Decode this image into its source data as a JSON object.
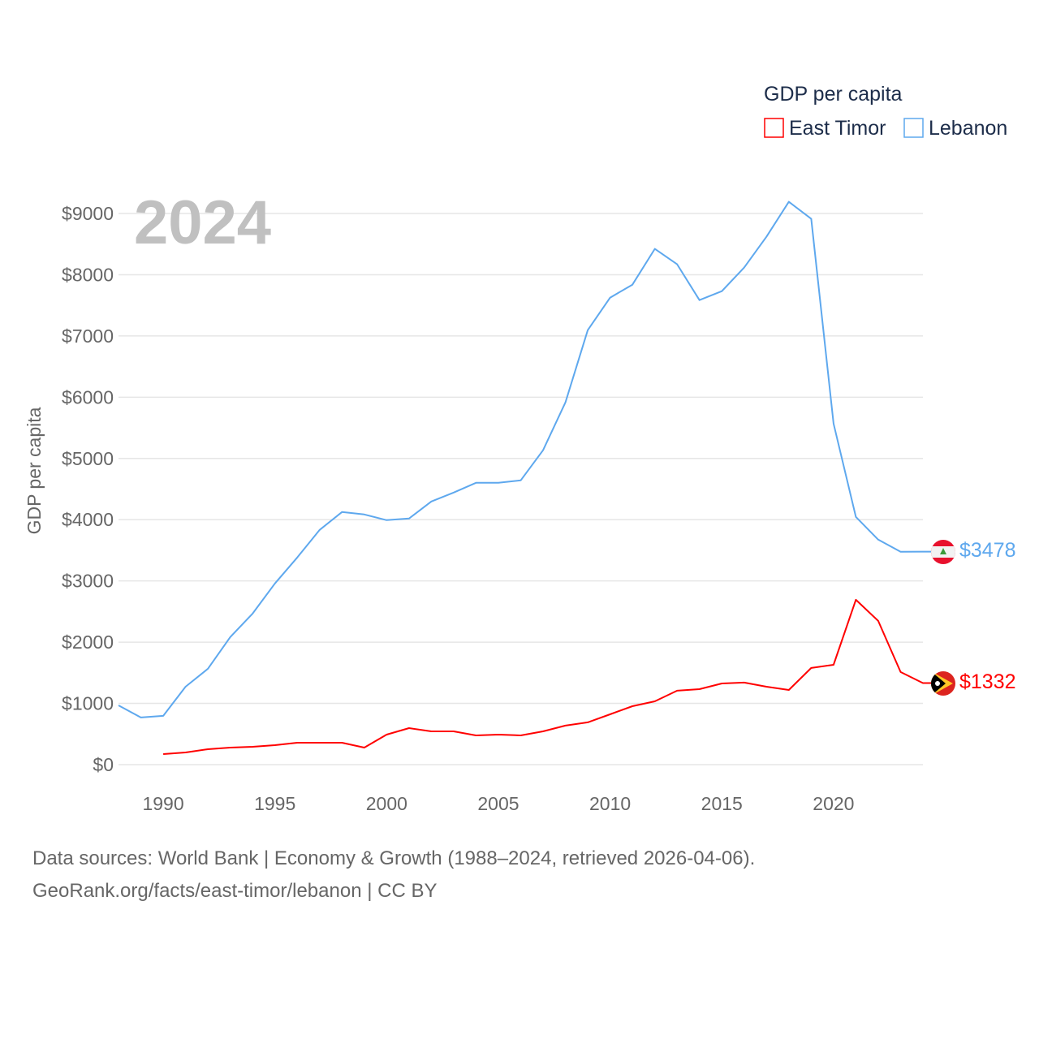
{
  "chart_data": {
    "type": "line",
    "title": "GDP per capita",
    "year_label": "2024",
    "xlabel": "",
    "ylabel": "GDP per capita",
    "xlim": [
      1988,
      2024
    ],
    "ylim": [
      0,
      9000
    ],
    "x_ticks": [
      1990,
      1995,
      2000,
      2005,
      2010,
      2015,
      2020
    ],
    "y_ticks": [
      0,
      1000,
      2000,
      3000,
      4000,
      5000,
      6000,
      7000,
      8000,
      9000
    ],
    "y_tick_labels": [
      "$0",
      "$1000",
      "$2000",
      "$3000",
      "$4000",
      "$5000",
      "$6000",
      "$7000",
      "$8000",
      "$9000"
    ],
    "grid": true,
    "legend_placement": "top-right",
    "series": [
      {
        "name": "East Timor",
        "color": "#ff0000",
        "end_label": "$1332",
        "x": [
          1990,
          1991,
          1992,
          1993,
          1994,
          1995,
          1996,
          1997,
          1998,
          1999,
          2000,
          2001,
          2002,
          2003,
          2004,
          2005,
          2006,
          2007,
          2008,
          2009,
          2010,
          2011,
          2012,
          2013,
          2014,
          2015,
          2016,
          2017,
          2018,
          2019,
          2020,
          2021,
          2022,
          2023,
          2024
        ],
        "values": [
          172,
          199,
          252,
          279,
          292,
          318,
          358,
          358,
          358,
          279,
          491,
          597,
          544,
          544,
          477,
          491,
          477,
          544,
          637,
          690,
          822,
          955,
          1034,
          1207,
          1233,
          1326,
          1340,
          1273,
          1220,
          1578,
          1631,
          2692,
          2347,
          1512,
          1332
        ]
      },
      {
        "name": "Lebanon",
        "color": "#5ea8ee",
        "end_label": "$3478",
        "x": [
          1988,
          1989,
          1990,
          1991,
          1992,
          1993,
          1994,
          1995,
          1996,
          1997,
          1998,
          1999,
          2000,
          2001,
          2002,
          2003,
          2004,
          2005,
          2006,
          2007,
          2008,
          2009,
          2010,
          2011,
          2012,
          2013,
          2014,
          2015,
          2016,
          2017,
          2018,
          2019,
          2020,
          2021,
          2022,
          2023,
          2024
        ],
        "values": [
          968,
          770,
          796,
          1273,
          1565,
          2082,
          2467,
          2958,
          3382,
          3833,
          4125,
          4085,
          3992,
          4019,
          4297,
          4443,
          4602,
          4602,
          4642,
          5133,
          5915,
          7095,
          7626,
          7838,
          8422,
          8170,
          7586,
          7732,
          8117,
          8621,
          9191,
          8912,
          5570,
          4045,
          3674,
          3475,
          3478
        ]
      }
    ]
  },
  "footer": {
    "line1": "Data sources: World Bank | Economy & Growth (1988–2024, retrieved 2026-04-06).",
    "line2": "GeoRank.org/facts/east-timor/lebanon | CC BY"
  }
}
